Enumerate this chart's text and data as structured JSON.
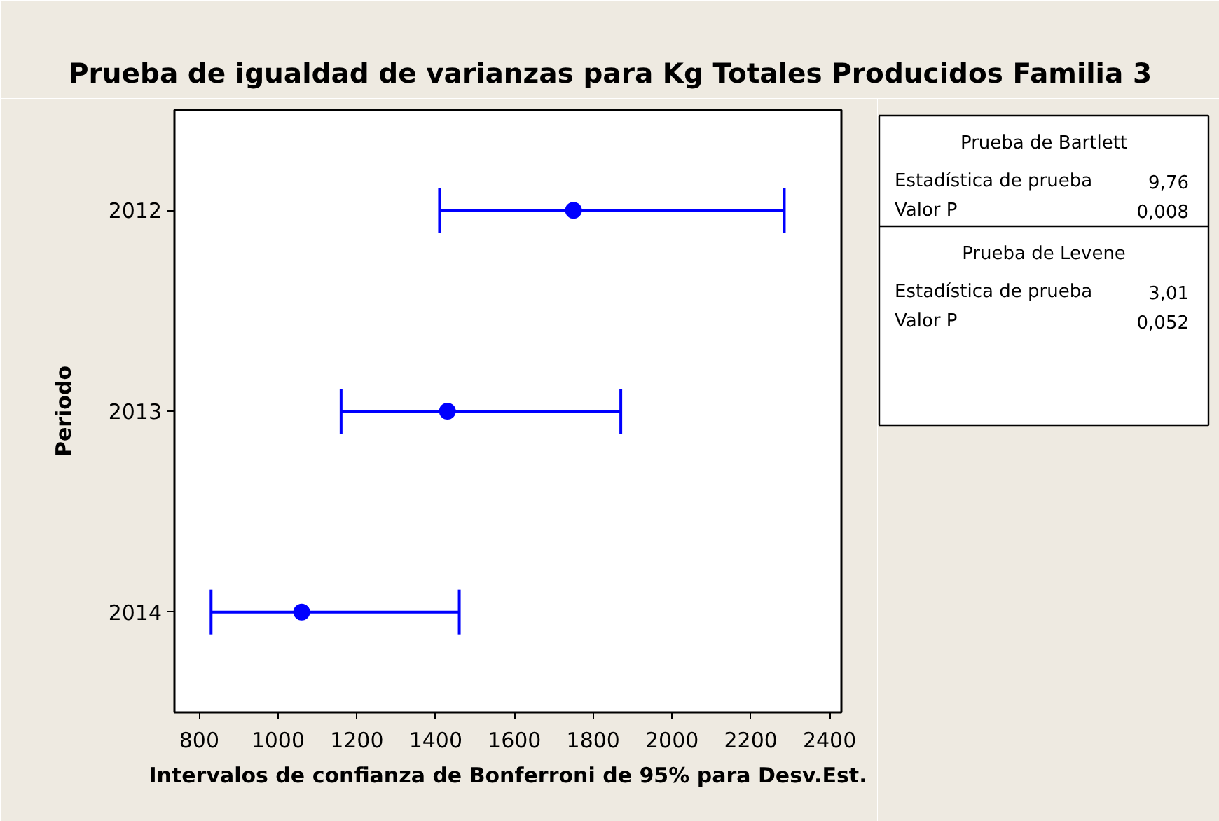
{
  "chart_data": {
    "type": "scatter",
    "orientation": "horizontal",
    "title": "Prueba de igualdad de varianzas para Kg Totales Producidos Familia 3",
    "xlabel": "Intervalos de confianza de Bonferroni de 95% para Desv.Est.",
    "ylabel": "Periodo",
    "categories": [
      "2012",
      "2013",
      "2014"
    ],
    "values": [
      1750,
      1430,
      1060
    ],
    "errors": [
      [
        1410,
        2285
      ],
      [
        1160,
        1870
      ],
      [
        830,
        1460
      ]
    ],
    "color": "#0000ff",
    "marker": "circle",
    "grid": false,
    "xlim": [
      737,
      2430
    ],
    "xticks": [
      800,
      1000,
      1200,
      1400,
      1600,
      1800,
      2000,
      2200,
      2400
    ],
    "annotations": [
      "Prueba de Bartlett",
      "Estadística de prueba",
      "9,76",
      "Valor P",
      "0,008",
      "Prueba de Levene",
      "Estadística de prueba",
      "3,01",
      "Valor P",
      "0,052"
    ]
  }
}
